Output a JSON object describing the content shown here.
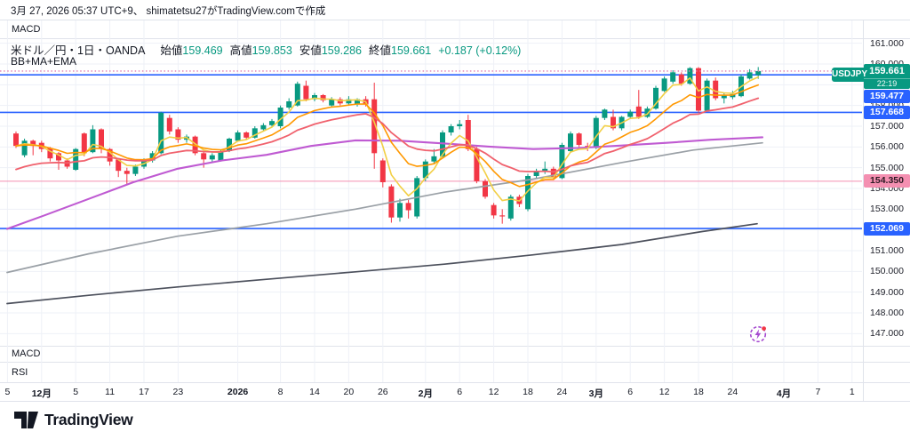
{
  "attribution": "3月 27, 2026 05:37 UTC+9、 shimatetsu27がTradingView.comで作成",
  "panels": {
    "macd_top_label": "MACD",
    "macd_bottom_label": "MACD",
    "rsi_label": "RSI"
  },
  "legend": {
    "title": "米ドル／円・1日・OANDA",
    "items": [
      {
        "label": "始値",
        "value": "159.469"
      },
      {
        "label": "高値",
        "value": "159.853"
      },
      {
        "label": "安値",
        "value": "159.286"
      },
      {
        "label": "終値",
        "value": "159.661"
      }
    ],
    "change": "+0.187 (+0.12%)",
    "indicator_label": "BB+MA+EMA"
  },
  "footer": {
    "logo_text": "TradingView"
  },
  "colors": {
    "up": "#089981",
    "down": "#f23645",
    "blue_line": "#2962ff",
    "pink_line": "#f48fb1",
    "dotted_line": "#e07bb0",
    "grid": "#eef1f7",
    "border": "#e0e3eb",
    "text": "#131722",
    "badge_pink_bg": "#f48fb1",
    "badge_pink_fg": "#2d1a24",
    "accent_purple": "#a54ad0"
  },
  "chart_data": {
    "type": "candlestick",
    "symbol": "USDJPY",
    "title": "米ドル／円・1日・OANDA",
    "interval": "1日",
    "exchange": "OANDA",
    "ohlc_current": {
      "open": 159.469,
      "high": 159.853,
      "low": 159.286,
      "close": 159.661,
      "change": "+0.187 (+0.12%)"
    },
    "countdown": "22:19",
    "ylim": [
      146.6,
      161.2
    ],
    "grid": true,
    "price_ticks": [
      {
        "text": "161.000",
        "price": 161
      },
      {
        "text": "160.000",
        "price": 160
      },
      {
        "text": "158.000",
        "price": 158
      },
      {
        "text": "157.000",
        "price": 157
      },
      {
        "text": "156.000",
        "price": 156
      },
      {
        "text": "155.000",
        "price": 155
      },
      {
        "text": "154.000",
        "price": 154
      },
      {
        "text": "153.000",
        "price": 153
      },
      {
        "text": "151.000",
        "price": 151
      },
      {
        "text": "150.000",
        "price": 150
      },
      {
        "text": "149.000",
        "price": 149
      },
      {
        "text": "148.000",
        "price": 148
      },
      {
        "text": "147.000",
        "price": 147
      }
    ],
    "grid_prices": [
      161,
      160,
      159,
      158,
      157,
      156,
      155,
      154,
      153,
      152,
      151,
      150,
      149,
      148,
      147
    ],
    "time_ticks": [
      {
        "bar": -1,
        "label": "5",
        "bold": false
      },
      {
        "bar": 3,
        "label": "12月",
        "bold": true
      },
      {
        "bar": 7,
        "label": "5",
        "bold": false
      },
      {
        "bar": 11,
        "label": "11",
        "bold": false
      },
      {
        "bar": 15,
        "label": "17",
        "bold": false
      },
      {
        "bar": 19,
        "label": "23",
        "bold": false
      },
      {
        "bar": 26,
        "label": "2026",
        "bold": true
      },
      {
        "bar": 31,
        "label": "8",
        "bold": false
      },
      {
        "bar": 35,
        "label": "14",
        "bold": false
      },
      {
        "bar": 39,
        "label": "20",
        "bold": false
      },
      {
        "bar": 43,
        "label": "26",
        "bold": false
      },
      {
        "bar": 48,
        "label": "2月",
        "bold": true
      },
      {
        "bar": 52,
        "label": "6",
        "bold": false
      },
      {
        "bar": 56,
        "label": "12",
        "bold": false
      },
      {
        "bar": 60,
        "label": "18",
        "bold": false
      },
      {
        "bar": 64,
        "label": "24",
        "bold": false
      },
      {
        "bar": 68,
        "label": "3月",
        "bold": true
      },
      {
        "bar": 72,
        "label": "6",
        "bold": false
      },
      {
        "bar": 76,
        "label": "12",
        "bold": false
      },
      {
        "bar": 80,
        "label": "18",
        "bold": false
      },
      {
        "bar": 84,
        "label": "24",
        "bold": false
      },
      {
        "bar": 90,
        "label": "4月",
        "bold": true
      },
      {
        "bar": 94,
        "label": "7",
        "bold": false
      },
      {
        "bar": 98,
        "label": "1",
        "bold": false
      }
    ],
    "levels": [
      {
        "value": "159.477",
        "price": 159.477,
        "style": "solid",
        "color": "#2962ff",
        "badge_bg": "#2962ff",
        "badge_fg": "#ffffff"
      },
      {
        "value": "157.668",
        "price": 157.668,
        "style": "solid",
        "color": "#2962ff",
        "badge_bg": "#2962ff",
        "badge_fg": "#ffffff"
      },
      {
        "value": "154.350",
        "price": 154.35,
        "style": "solid",
        "color": "#f48fb1",
        "badge_bg": "#f48fb1",
        "badge_fg": "#2d1a24"
      },
      {
        "value": "152.069",
        "price": 152.069,
        "style": "solid",
        "color": "#2962ff",
        "badge_bg": "#2962ff",
        "badge_fg": "#ffffff"
      }
    ],
    "current_price_line": {
      "price": 159.661,
      "style": "dotted",
      "color": "#e07bb0"
    },
    "moving_averages": [
      {
        "name": "ema-fast-yellow",
        "type": "ema",
        "period": 4,
        "seed": null,
        "color": "#f2cf45",
        "width": 1.6
      },
      {
        "name": "ema-mid-orange",
        "type": "ema",
        "period": 10,
        "seed": null,
        "color": "#ff9800",
        "width": 1.6
      },
      {
        "name": "ema-slow-red",
        "type": "ema",
        "period": 20,
        "seed": 154.8,
        "color": "#f0616d",
        "width": 1.8
      }
    ],
    "ma_polylines": [
      {
        "name": "ma-purple",
        "color": "#bf5ad2",
        "width": 2.1,
        "points": [
          [
            8,
            152.05
          ],
          [
            50,
            152.7
          ],
          [
            100,
            153.5
          ],
          [
            150,
            154.3
          ],
          [
            200,
            154.95
          ],
          [
            250,
            155.35
          ],
          [
            300,
            155.62
          ],
          [
            350,
            156.05
          ],
          [
            400,
            156.32
          ],
          [
            450,
            156.3
          ],
          [
            500,
            156.17
          ],
          [
            550,
            156.02
          ],
          [
            600,
            155.9
          ],
          [
            650,
            155.95
          ],
          [
            700,
            156.07
          ],
          [
            750,
            156.2
          ],
          [
            800,
            156.35
          ],
          [
            858,
            156.47
          ]
        ]
      },
      {
        "name": "ma-gray",
        "color": "#9aa0a6",
        "width": 1.7,
        "points": [
          [
            8,
            149.95
          ],
          [
            100,
            150.85
          ],
          [
            200,
            151.7
          ],
          [
            300,
            152.3
          ],
          [
            400,
            153.0
          ],
          [
            500,
            153.82
          ],
          [
            600,
            154.45
          ],
          [
            700,
            155.25
          ],
          [
            780,
            155.85
          ],
          [
            858,
            156.2
          ]
        ]
      },
      {
        "name": "ma-dark",
        "color": "#4c505c",
        "width": 1.7,
        "points": [
          [
            8,
            148.45
          ],
          [
            100,
            148.85
          ],
          [
            200,
            149.25
          ],
          [
            300,
            149.62
          ],
          [
            400,
            149.98
          ],
          [
            500,
            150.35
          ],
          [
            600,
            150.8
          ],
          [
            700,
            151.3
          ],
          [
            790,
            151.92
          ],
          [
            852,
            152.3
          ]
        ]
      }
    ],
    "candles": [
      [
        156.65,
        156.75,
        155.95,
        156.05
      ],
      [
        155.6,
        156.4,
        155.5,
        156.3
      ],
      [
        156.3,
        156.35,
        155.6,
        156.05
      ],
      [
        156.2,
        156.3,
        155.75,
        155.9
      ],
      [
        155.95,
        156.0,
        155.3,
        155.45
      ],
      [
        155.7,
        155.75,
        154.9,
        155.35
      ],
      [
        155.35,
        155.45,
        154.95,
        155.05
      ],
      [
        154.9,
        155.95,
        154.85,
        155.9
      ],
      [
        156.65,
        156.7,
        155.55,
        155.7
      ],
      [
        155.75,
        157.05,
        155.7,
        156.85
      ],
      [
        156.85,
        156.9,
        155.7,
        155.9
      ],
      [
        155.9,
        155.95,
        155.1,
        155.3
      ],
      [
        155.4,
        155.45,
        154.55,
        154.85
      ],
      [
        154.85,
        155.0,
        154.2,
        154.7
      ],
      [
        154.7,
        155.15,
        154.6,
        155.05
      ],
      [
        155.05,
        155.45,
        154.95,
        155.35
      ],
      [
        155.35,
        155.8,
        155.25,
        155.7
      ],
      [
        155.7,
        157.7,
        155.65,
        157.65
      ],
      [
        157.4,
        157.55,
        156.6,
        156.75
      ],
      [
        156.85,
        156.95,
        156.2,
        156.35
      ],
      [
        156.35,
        156.6,
        156.2,
        156.5
      ],
      [
        156.5,
        156.55,
        155.6,
        155.7
      ],
      [
        155.7,
        155.8,
        155.0,
        155.4
      ],
      [
        155.4,
        155.7,
        155.25,
        155.6
      ],
      [
        155.35,
        155.85,
        155.3,
        155.75
      ],
      [
        155.8,
        156.45,
        155.75,
        156.4
      ],
      [
        156.3,
        156.8,
        156.25,
        156.7
      ],
      [
        156.7,
        156.75,
        156.35,
        156.45
      ],
      [
        156.45,
        157.0,
        156.4,
        156.9
      ],
      [
        156.85,
        157.15,
        156.8,
        157.05
      ],
      [
        157.05,
        157.35,
        156.95,
        157.25
      ],
      [
        157.0,
        158.0,
        156.9,
        157.9
      ],
      [
        157.9,
        158.35,
        157.8,
        158.2
      ],
      [
        158.0,
        159.15,
        157.95,
        159.05
      ],
      [
        158.95,
        159.2,
        158.2,
        158.3
      ],
      [
        158.3,
        158.6,
        158.2,
        158.5
      ],
      [
        158.5,
        158.55,
        158.15,
        158.25
      ],
      [
        158.0,
        158.4,
        157.9,
        158.3
      ],
      [
        158.3,
        158.4,
        158.0,
        158.1
      ],
      [
        158.1,
        158.45,
        158.05,
        158.3
      ],
      [
        158.05,
        158.35,
        157.95,
        158.3
      ],
      [
        158.3,
        158.45,
        157.95,
        158.05
      ],
      [
        158.3,
        159.1,
        154.95,
        155.7
      ],
      [
        155.35,
        155.45,
        154.05,
        154.3
      ],
      [
        154.1,
        154.2,
        152.35,
        152.6
      ],
      [
        152.6,
        153.5,
        152.4,
        153.3
      ],
      [
        153.3,
        153.45,
        152.55,
        152.95
      ],
      [
        152.65,
        154.6,
        152.55,
        154.5
      ],
      [
        154.5,
        155.4,
        154.35,
        155.3
      ],
      [
        155.3,
        155.9,
        155.2,
        155.55
      ],
      [
        155.55,
        156.8,
        155.5,
        156.7
      ],
      [
        156.7,
        157.1,
        156.55,
        157.0
      ],
      [
        157.0,
        157.3,
        156.85,
        157.1
      ],
      [
        157.3,
        157.55,
        155.8,
        155.9
      ],
      [
        155.9,
        156.0,
        154.25,
        154.35
      ],
      [
        154.35,
        154.45,
        153.5,
        153.6
      ],
      [
        153.2,
        153.3,
        152.55,
        152.7
      ],
      [
        152.7,
        153.0,
        152.3,
        152.65
      ],
      [
        152.55,
        153.7,
        152.45,
        153.6
      ],
      [
        153.6,
        153.7,
        153.1,
        153.25
      ],
      [
        153.0,
        154.7,
        152.9,
        154.6
      ],
      [
        154.6,
        154.95,
        154.5,
        154.85
      ],
      [
        154.85,
        155.3,
        154.7,
        154.95
      ],
      [
        154.95,
        155.05,
        154.4,
        154.5
      ],
      [
        154.5,
        156.2,
        154.45,
        156.1
      ],
      [
        155.8,
        156.75,
        155.75,
        156.65
      ],
      [
        156.65,
        156.7,
        156.0,
        156.1
      ],
      [
        156.05,
        156.2,
        155.8,
        155.95
      ],
      [
        155.95,
        157.5,
        155.9,
        157.4
      ],
      [
        157.4,
        157.85,
        157.3,
        157.8
      ],
      [
        157.45,
        157.8,
        156.8,
        156.9
      ],
      [
        156.9,
        157.5,
        156.8,
        157.45
      ],
      [
        157.45,
        157.8,
        157.35,
        157.7
      ],
      [
        157.95,
        158.75,
        157.35,
        157.45
      ],
      [
        157.45,
        157.95,
        157.4,
        157.85
      ],
      [
        157.85,
        158.95,
        157.8,
        158.85
      ],
      [
        158.7,
        159.4,
        158.65,
        159.3
      ],
      [
        159.15,
        159.7,
        159.05,
        159.6
      ],
      [
        159.5,
        159.6,
        158.95,
        159.05
      ],
      [
        159.05,
        159.85,
        159.0,
        159.8
      ],
      [
        159.8,
        159.85,
        157.65,
        157.75
      ],
      [
        157.75,
        159.3,
        157.7,
        159.2
      ],
      [
        159.2,
        159.35,
        158.25,
        158.35
      ],
      [
        158.35,
        158.6,
        158.1,
        158.5
      ],
      [
        158.4,
        158.7,
        158.3,
        158.55
      ],
      [
        158.45,
        159.5,
        158.4,
        159.4
      ],
      [
        159.3,
        159.75,
        159.25,
        159.6
      ],
      [
        159.469,
        159.853,
        159.286,
        159.661
      ]
    ]
  }
}
